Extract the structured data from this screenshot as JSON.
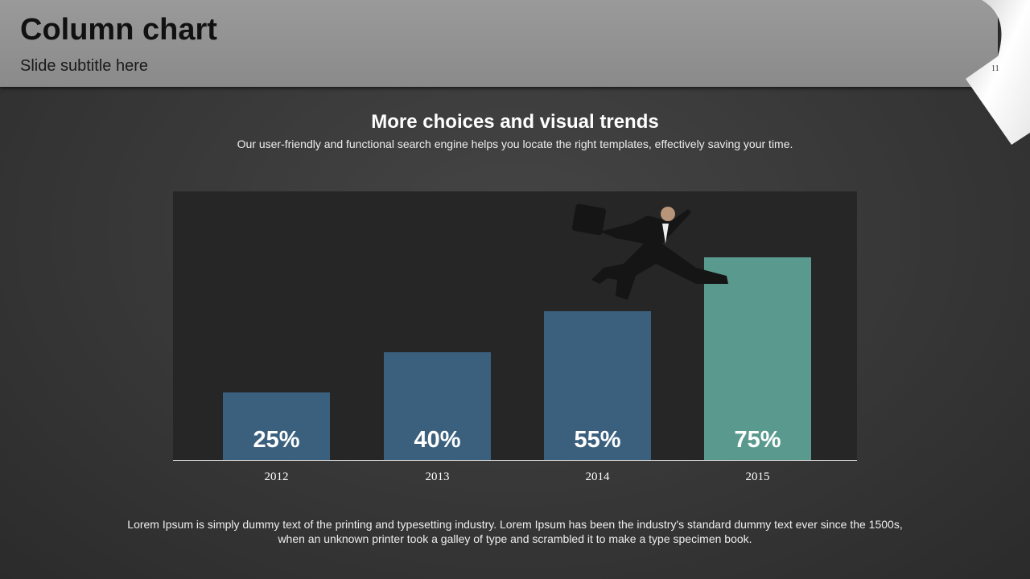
{
  "header": {
    "title": "Column chart",
    "subtitle": "Slide subtitle here",
    "page_number": "11"
  },
  "chart_data": {
    "type": "bar",
    "title": "More choices and visual trends",
    "subtitle": "Our user-friendly and functional search engine helps you locate the right templates, effectively saving your time.",
    "categories": [
      "2012",
      "2013",
      "2014",
      "2015"
    ],
    "values": [
      25,
      40,
      55,
      75
    ],
    "labels": [
      "25%",
      "40%",
      "55%",
      "75%"
    ],
    "colors": [
      "#3a607e",
      "#3a607e",
      "#3a607e",
      "#5a9a8e"
    ],
    "xlabel": "",
    "ylabel": "",
    "ylim": [
      0,
      100
    ],
    "grid": false
  },
  "footer": {
    "text": "Lorem Ipsum is simply dummy text of the printing and typesetting industry. Lorem Ipsum has been the industry's standard dummy text ever since the 1500s, when an unknown printer took a galley of type and scrambled it to make a type specimen book."
  }
}
